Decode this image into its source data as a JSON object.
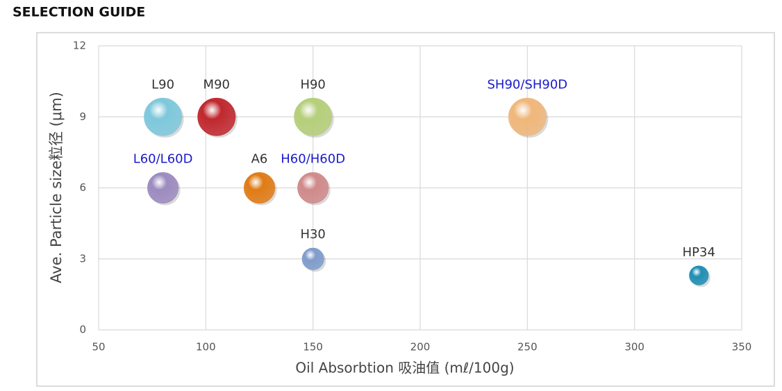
{
  "chart_data": {
    "type": "bubble",
    "title": "SELECTION GUIDE",
    "x_label": "Oil Absorbtion 吸油值 (mℓ/100g)",
    "y_label": "Ave. Particle size粒径 (μm)",
    "xlim": [
      50,
      350
    ],
    "xticks": [
      50,
      100,
      150,
      200,
      250,
      300,
      350
    ],
    "ylim": [
      0,
      12
    ],
    "yticks": [
      0,
      3,
      6,
      9,
      12
    ],
    "grid": true,
    "points": [
      {
        "name": "L90",
        "x": 80,
        "y": 9,
        "color": "#7ec8dc",
        "label_color": "#333333"
      },
      {
        "name": "M90",
        "x": 105,
        "y": 9,
        "color": "#c0282e",
        "label_color": "#333333"
      },
      {
        "name": "H90",
        "x": 150,
        "y": 9,
        "color": "#b5cf7a",
        "label_color": "#333333"
      },
      {
        "name": "SH90/SH90D",
        "x": 250,
        "y": 9,
        "color": "#f0b77a",
        "label_color": "#1a1acc"
      },
      {
        "name": "L60/L60D",
        "x": 80,
        "y": 6,
        "color": "#9c8bbf",
        "label_color": "#1a1acc"
      },
      {
        "name": "A6",
        "x": 125,
        "y": 6,
        "color": "#e07b15",
        "label_color": "#333333"
      },
      {
        "name": "H60/H60D",
        "x": 150,
        "y": 6,
        "color": "#d08a8a",
        "label_color": "#1a1acc"
      },
      {
        "name": "H30",
        "x": 150,
        "y": 3,
        "color": "#7f9ccc",
        "label_color": "#333333"
      },
      {
        "name": "HP34",
        "x": 330,
        "y": 2.3,
        "color": "#1f8fb4",
        "label_color": "#333333"
      }
    ]
  }
}
